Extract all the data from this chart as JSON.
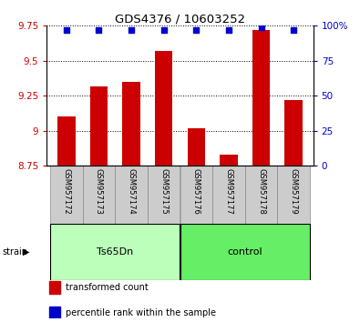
{
  "title": "GDS4376 / 10603252",
  "samples": [
    "GSM957172",
    "GSM957173",
    "GSM957174",
    "GSM957175",
    "GSM957176",
    "GSM957177",
    "GSM957178",
    "GSM957179"
  ],
  "transformed_counts": [
    9.1,
    9.32,
    9.35,
    9.57,
    9.02,
    8.83,
    9.72,
    9.22
  ],
  "percentile_ranks": [
    97,
    97,
    97,
    97,
    97,
    97,
    99,
    97
  ],
  "groups": [
    "Ts65Dn",
    "Ts65Dn",
    "Ts65Dn",
    "Ts65Dn",
    "control",
    "control",
    "control",
    "control"
  ],
  "group_colors": {
    "Ts65Dn": "#bbffbb",
    "control": "#66ee66"
  },
  "ylim_left": [
    8.75,
    9.75
  ],
  "ylim_right": [
    0,
    100
  ],
  "yticks_left": [
    8.75,
    9.0,
    9.25,
    9.5,
    9.75
  ],
  "yticks_right": [
    0,
    25,
    50,
    75,
    100
  ],
  "ytick_labels_left": [
    "8.75",
    "9",
    "9.25",
    "9.5",
    "9.75"
  ],
  "ytick_labels_right": [
    "0",
    "25",
    "50",
    "75",
    "100%"
  ],
  "bar_color": "#cc0000",
  "dot_color": "#0000cc",
  "ylabel_left_color": "#cc0000",
  "ylabel_right_color": "#0000cc",
  "background_color": "#ffffff",
  "sample_box_color": "#cccccc",
  "strain_label": "strain",
  "legend_items": [
    "transformed count",
    "percentile rank within the sample"
  ],
  "legend_colors": [
    "#cc0000",
    "#0000cc"
  ],
  "group_info": [
    {
      "name": "Ts65Dn",
      "start": 0,
      "end": 3
    },
    {
      "name": "control",
      "start": 4,
      "end": 7
    }
  ]
}
